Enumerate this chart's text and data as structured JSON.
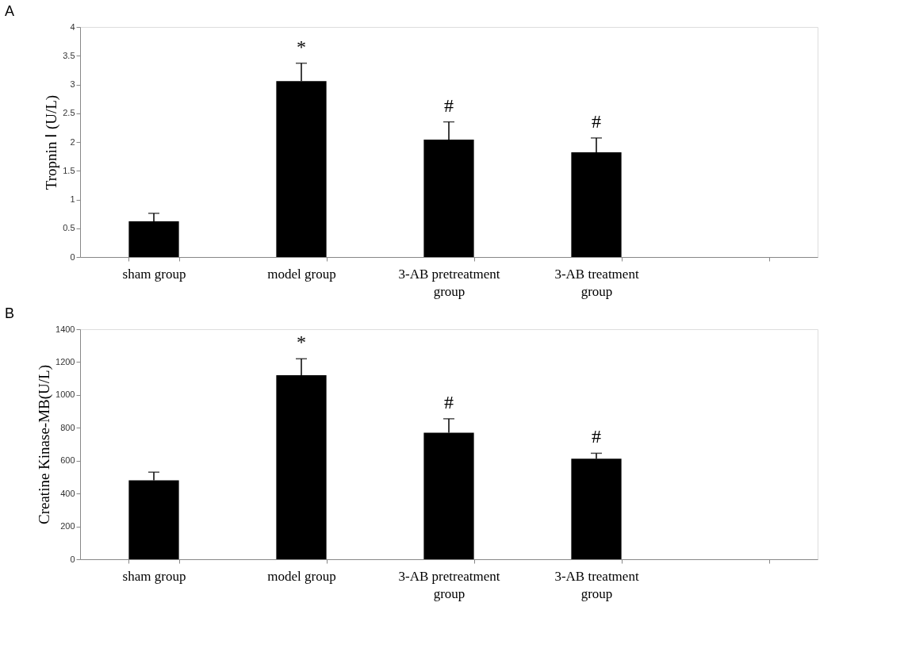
{
  "chart_data": [
    {
      "type": "bar",
      "title": "A",
      "ylabel": "Tropnin Ⅰ (U/L)",
      "categories": [
        "sham group",
        "model group",
        "3-AB pretreatment group",
        "3-AB treatment group",
        null
      ],
      "values": [
        0.62,
        3.06,
        2.04,
        1.82,
        null
      ],
      "color": "#000000",
      "errors": [
        [
          0.62,
          0.76
        ],
        [
          3.06,
          3.37
        ],
        [
          2.04,
          2.35
        ],
        [
          1.82,
          2.07
        ],
        null
      ],
      "value_labels": [
        null,
        "*",
        "#",
        "#",
        null
      ],
      "ylim": [
        0,
        4
      ],
      "yticks": [
        0,
        0.5,
        1,
        1.5,
        2,
        2.5,
        3,
        3.5,
        4
      ],
      "grid": false
    },
    {
      "type": "bar",
      "title": "B",
      "ylabel": "Creatine Kinase-MB(U/L)",
      "categories": [
        "sham group",
        "model group",
        "3-AB pretreatment group",
        "3-AB treatment group",
        null
      ],
      "values": [
        480,
        1120,
        770,
        612,
        null
      ],
      "color": "#000000",
      "errors": [
        [
          480,
          530
        ],
        [
          1120,
          1220
        ],
        [
          770,
          855
        ],
        [
          612,
          645
        ],
        null
      ],
      "value_labels": [
        null,
        "*",
        "#",
        "#",
        null
      ],
      "ylim": [
        0,
        1400
      ],
      "yticks": [
        0,
        200,
        400,
        600,
        800,
        1000,
        1200,
        1400
      ],
      "grid": false
    }
  ]
}
